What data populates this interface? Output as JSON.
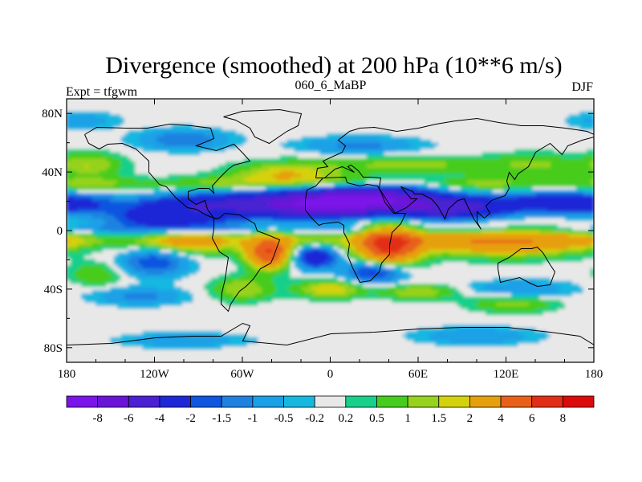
{
  "chart_data": {
    "type": "heatmap",
    "title": "Divergence (smoothed) at 200 hPa (10**6 m/s)",
    "subtitle": "060_6_MaBP",
    "left_string": "Expt = tfgwm",
    "right_string": "DJF",
    "x": {
      "label": "",
      "range": [
        -180,
        180
      ],
      "ticks": [
        -180,
        -120,
        -60,
        0,
        60,
        120,
        180
      ],
      "tick_labels": [
        "180",
        "120W",
        "60W",
        "0",
        "60E",
        "120E",
        "180"
      ]
    },
    "y": {
      "label": "",
      "range": [
        -90,
        90
      ],
      "ticks": [
        80,
        40,
        0,
        -40,
        -80
      ],
      "tick_labels": [
        "80N",
        "40N",
        "0",
        "40S",
        "80S"
      ]
    },
    "levels": [
      -8,
      -6,
      -4,
      -2,
      -1.5,
      -1,
      -0.5,
      -0.2,
      0.2,
      0.5,
      1,
      1.5,
      2,
      4,
      6,
      8
    ],
    "level_labels": [
      "-8",
      "-6",
      "-4",
      "-2",
      "-1.5",
      "-1",
      "-0.5",
      "-0.2",
      "0.2",
      "0.5",
      "1",
      "1.5",
      "2",
      "4",
      "6",
      "8"
    ],
    "colors": [
      "#7b14e8",
      "#6a14d8",
      "#4a20d2",
      "#1f28d6",
      "#0f55e0",
      "#1f82e0",
      "#1aa0e6",
      "#16b8e0",
      "#e8e8e8",
      "#18d08a",
      "#46cc1e",
      "#96d21e",
      "#d4d20c",
      "#e6a00c",
      "#e8601a",
      "#e22e18",
      "#dc0a0a"
    ],
    "features": [
      {
        "lon": -20,
        "lat": 18,
        "value": -5.5,
        "lw": 55,
        "lh": 9
      },
      {
        "lon": 30,
        "lat": 22,
        "value": -6.0,
        "lw": 38,
        "lh": 8
      },
      {
        "lon": -110,
        "lat": 8,
        "value": -3.0,
        "lw": 40,
        "lh": 8
      },
      {
        "lon": 80,
        "lat": 14,
        "value": -3.0,
        "lw": 40,
        "lh": 7
      },
      {
        "lon": 150,
        "lat": 20,
        "value": -2.0,
        "lw": 30,
        "lh": 6
      },
      {
        "lon": -165,
        "lat": 45,
        "value": 1.5,
        "lw": 22,
        "lh": 8
      },
      {
        "lon": -30,
        "lat": 38,
        "value": 2.0,
        "lw": 35,
        "lh": 8
      },
      {
        "lon": 55,
        "lat": 45,
        "value": 1.2,
        "lw": 60,
        "lh": 6
      },
      {
        "lon": 140,
        "lat": 45,
        "value": 1.0,
        "lw": 28,
        "lh": 8
      },
      {
        "lon": -100,
        "lat": 62,
        "value": -1.5,
        "lw": 30,
        "lh": 7
      },
      {
        "lon": 20,
        "lat": 58,
        "value": -1.2,
        "lw": 40,
        "lh": 6
      },
      {
        "lon": -170,
        "lat": 75,
        "value": -0.8,
        "lw": 25,
        "lh": 6
      },
      {
        "lon": 40,
        "lat": -10,
        "value": 7.0,
        "lw": 20,
        "lh": 12
      },
      {
        "lon": -42,
        "lat": -15,
        "value": 6.0,
        "lw": 14,
        "lh": 10
      },
      {
        "lon": 120,
        "lat": -8,
        "value": 3.5,
        "lw": 50,
        "lh": 9
      },
      {
        "lon": -90,
        "lat": -8,
        "value": 1.8,
        "lw": 30,
        "lh": 8
      },
      {
        "lon": -120,
        "lat": -22,
        "value": -2.0,
        "lw": 22,
        "lh": 9
      },
      {
        "lon": -10,
        "lat": -18,
        "value": -3.0,
        "lw": 15,
        "lh": 8
      },
      {
        "lon": 30,
        "lat": -28,
        "value": -2.5,
        "lw": 20,
        "lh": 8
      },
      {
        "lon": -160,
        "lat": -30,
        "value": 1.0,
        "lw": 18,
        "lh": 8
      },
      {
        "lon": -60,
        "lat": -40,
        "value": 1.5,
        "lw": 20,
        "lh": 8
      },
      {
        "lon": 0,
        "lat": -40,
        "value": 2.0,
        "lw": 22,
        "lh": 6
      },
      {
        "lon": 60,
        "lat": -42,
        "value": 1.5,
        "lw": 25,
        "lh": 5
      },
      {
        "lon": 130,
        "lat": -40,
        "value": -1.0,
        "lw": 35,
        "lh": 6
      },
      {
        "lon": -130,
        "lat": -45,
        "value": -1.2,
        "lw": 30,
        "lh": 6
      },
      {
        "lon": 125,
        "lat": -50,
        "value": 1.2,
        "lw": 28,
        "lh": 6
      },
      {
        "lon": -100,
        "lat": -75,
        "value": -1.0,
        "lw": 40,
        "lh": 5
      },
      {
        "lon": 100,
        "lat": -72,
        "value": -1.0,
        "lw": 40,
        "lh": 6
      }
    ],
    "bands": [
      {
        "lat": 32,
        "value": 1.2,
        "lh": 5,
        "phase": 0.5
      },
      {
        "lat": 18,
        "value": -2.5,
        "lh": 7,
        "phase": 1.7
      },
      {
        "lat": 1,
        "value": -0.8,
        "lh": 3,
        "phase": 0
      },
      {
        "lat": -7,
        "value": 1.5,
        "lh": 5,
        "phase": 2.4
      }
    ]
  }
}
